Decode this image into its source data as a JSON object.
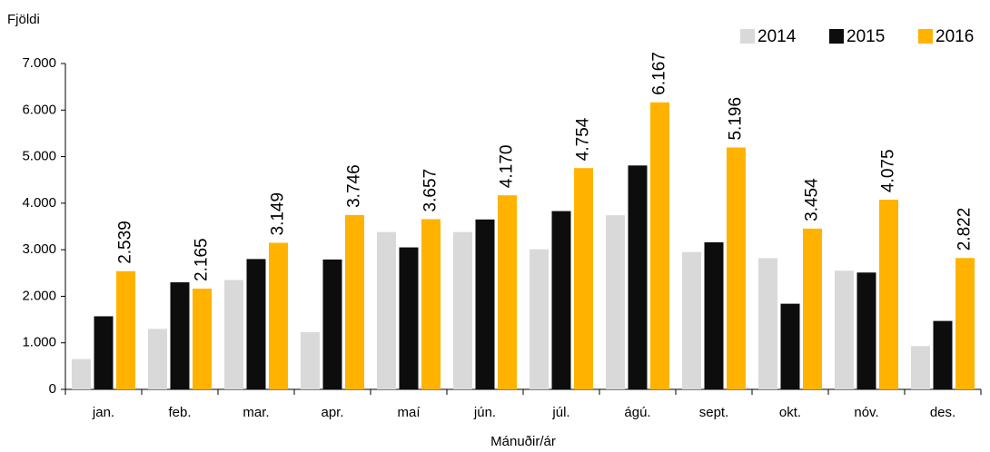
{
  "chart_data": {
    "type": "bar",
    "y_label": "Fjöldi",
    "x_label": "Mánuðir/ár",
    "categories": [
      "jan.",
      "feb.",
      "mar.",
      "apr.",
      "maí",
      "jún.",
      "júl.",
      "ágú.",
      "sept.",
      "okt.",
      "nóv.",
      "des."
    ],
    "series": [
      {
        "name": "2014",
        "color": "#d9d9d9",
        "values": [
          650,
          1300,
          2350,
          1230,
          3380,
          3380,
          3010,
          3740,
          2950,
          2820,
          2550,
          930
        ]
      },
      {
        "name": "2015",
        "color": "#0d0d0d",
        "values": [
          1570,
          2300,
          2800,
          2790,
          3050,
          3650,
          3830,
          4810,
          3160,
          1840,
          2510,
          1470
        ]
      },
      {
        "name": "2016",
        "color": "#ffb300",
        "values": [
          2539,
          2165,
          3149,
          3746,
          3657,
          4170,
          4754,
          6167,
          5196,
          3454,
          4075,
          2822
        ],
        "value_labels": [
          "2.539",
          "2.165",
          "3.149",
          "3.746",
          "3.657",
          "4.170",
          "4.754",
          "6.167",
          "5.196",
          "3.454",
          "4.075",
          "2.822"
        ]
      }
    ],
    "ylim": [
      0,
      7000
    ],
    "yticks": [
      0,
      {
        "value": 1000,
        "label": "1.000"
      },
      {
        "value": 2000,
        "label": "2.000"
      },
      {
        "value": 3000,
        "label": "3.000"
      },
      {
        "value": 4000,
        "label": "4.000"
      },
      {
        "value": 5000,
        "label": "5.000"
      },
      {
        "value": 6000,
        "label": "6.000"
      },
      {
        "value": 7000,
        "label": "7.000"
      }
    ],
    "legend": "top-right"
  }
}
